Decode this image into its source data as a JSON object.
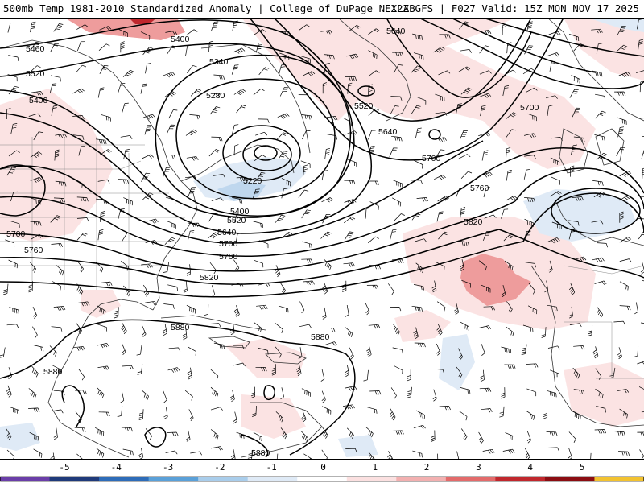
{
  "header": {
    "title_left": "500mb Temp 1981-2010 Standardized Anomaly | College of DuPage NEXLAB",
    "title_right": "12Z GFS | F027 Valid: 15Z MON NOV 17 2025"
  },
  "colorbar": {
    "ticks": [
      "-5",
      "-4",
      "-3",
      "-2",
      "-1",
      "0",
      "1",
      "2",
      "3",
      "4",
      "5"
    ],
    "colors": [
      "#6a3ea8",
      "#1f3a7a",
      "#2e6cb8",
      "#5aa0d8",
      "#a9cdeb",
      "#dfeaf6",
      "#ffffff",
      "#fbe0e0",
      "#f2b0b0",
      "#e36b6b",
      "#c0272d",
      "#8b0d12",
      "#f2c230"
    ]
  },
  "contours": {
    "labels": [
      "5400",
      "5460",
      "5520",
      "5400",
      "5340",
      "5280",
      "5640",
      "5520",
      "5640",
      "5700",
      "5220",
      "5760",
      "5700",
      "5820",
      "5400",
      "5520",
      "5640",
      "5700",
      "5760",
      "5820",
      "5700",
      "5760",
      "5880",
      "5880",
      "5880",
      "5880"
    ]
  }
}
